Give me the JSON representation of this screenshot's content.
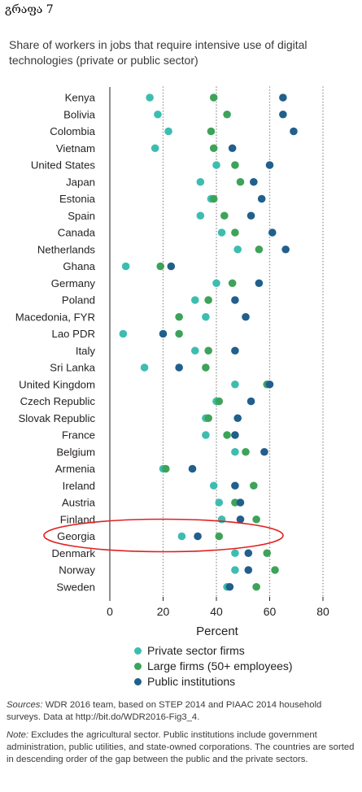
{
  "doc_label": "გრაფა 7",
  "chart_data": {
    "type": "scatter",
    "title": "Share of workers in jobs that require intensive use of digital technologies (private or public sector)",
    "xlabel": "Percent",
    "xlim": [
      0,
      80
    ],
    "xticks": [
      0,
      20,
      40,
      60,
      80
    ],
    "highlight": "Georgia",
    "colors": {
      "private": "#3dbdb0",
      "large": "#3da35a",
      "public": "#215f8c",
      "highlight": "#e02020"
    },
    "categories": [
      "Kenya",
      "Bolivia",
      "Colombia",
      "Vietnam",
      "United States",
      "Japan",
      "Estonia",
      "Spain",
      "Canada",
      "Netherlands",
      "Ghana",
      "Germany",
      "Poland",
      "Macedonia, FYR",
      "Lao PDR",
      "Italy",
      "Sri Lanka",
      "United Kingdom",
      "Czech Republic",
      "Slovak Republic",
      "France",
      "Belgium",
      "Armenia",
      "Ireland",
      "Austria",
      "Finland",
      "Georgia",
      "Denmark",
      "Norway",
      "Sweden"
    ],
    "series": [
      {
        "key": "private",
        "name": "Private sector firms",
        "values": [
          15,
          18,
          22,
          17,
          40,
          34,
          38,
          34,
          42,
          48,
          6,
          40,
          32,
          36,
          5,
          32,
          13,
          47,
          40,
          36,
          36,
          47,
          20,
          39,
          41,
          42,
          27,
          47,
          47,
          44
        ]
      },
      {
        "key": "large",
        "name": "Large firms (50+ employees)",
        "values": [
          39,
          44,
          38,
          39,
          47,
          49,
          39,
          43,
          47,
          56,
          19,
          46,
          37,
          26,
          26,
          37,
          36,
          59,
          41,
          37,
          44,
          51,
          21,
          54,
          47,
          55,
          41,
          59,
          62,
          55
        ]
      },
      {
        "key": "public",
        "name": "Public institutions",
        "values": [
          65,
          65,
          69,
          46,
          60,
          54,
          57,
          53,
          61,
          66,
          23,
          56,
          47,
          51,
          20,
          47,
          26,
          60,
          53,
          48,
          47,
          58,
          31,
          47,
          49,
          49,
          33,
          52,
          52,
          45
        ]
      }
    ]
  },
  "notes": {
    "sources_label": "Sources:",
    "sources_text": " WDR 2016 team, based on STEP 2014 and PIAAC 2014 household surveys. Data at http://bit.do/WDR2016-Fig3_4.",
    "note_label": "Note:",
    "note_text": " Excludes the agricultural sector. Public institutions include government administration, public utilities, and state-owned corporations. The countries are sorted in descending order of the gap between the public and the private sectors."
  }
}
